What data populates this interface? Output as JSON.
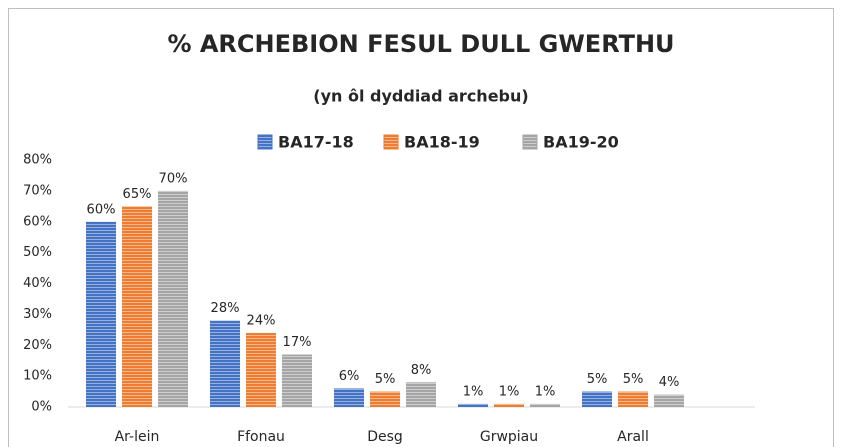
{
  "chart_data": {
    "type": "bar",
    "title": "% ARCHEBION FESUL DULL GWERTHU",
    "subtitle": "(yn ôl dyddiad archebu)",
    "categories": [
      "Ar-lein",
      "Ffonau",
      "Desg",
      "Grwpiau",
      "Arall"
    ],
    "series": [
      {
        "name": "BA17-18",
        "color": "#4472c4",
        "values": [
          60,
          28,
          6,
          1,
          5
        ],
        "value_labels": [
          "60%",
          "28%",
          "6%",
          "1%",
          "5%"
        ]
      },
      {
        "name": "BA18-19",
        "color": "#ed7d31",
        "values": [
          65,
          24,
          5,
          1,
          5
        ],
        "value_labels": [
          "65%",
          "24%",
          "5%",
          "1%",
          "5%"
        ]
      },
      {
        "name": "BA19-20",
        "color": "#a5a5a5",
        "values": [
          70,
          17,
          8,
          1,
          4
        ],
        "value_labels": [
          "70%",
          "17%",
          "8%",
          "1%",
          "4%"
        ]
      }
    ],
    "ylim": [
      0,
      80
    ],
    "yticks": [
      {
        "value": 0,
        "label": "0%"
      },
      {
        "value": 10,
        "label": "10%"
      },
      {
        "value": 20,
        "label": "20%"
      },
      {
        "value": 30,
        "label": "30%"
      },
      {
        "value": 40,
        "label": "40%"
      },
      {
        "value": 50,
        "label": "50%"
      },
      {
        "value": 60,
        "label": "60%"
      },
      {
        "value": 70,
        "label": "70%"
      },
      {
        "value": 80,
        "label": "80%"
      }
    ],
    "grid": false,
    "legend": "top"
  }
}
